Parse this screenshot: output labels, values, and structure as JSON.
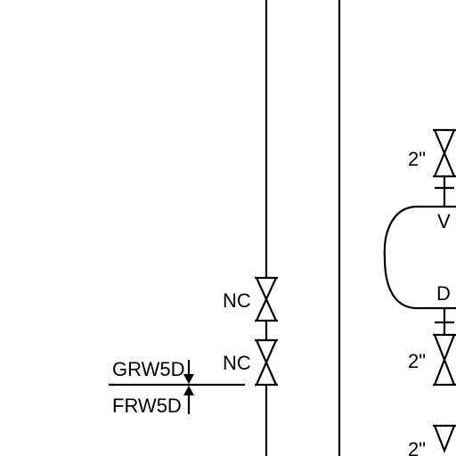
{
  "diagram": {
    "line_color": "#000000",
    "background": "#ffffff",
    "valve_labels": {
      "upper_valve": "NC",
      "lower_valve": "NC"
    },
    "boundary_labels": {
      "above": "GRW5D",
      "below": "FRW5D"
    },
    "right_valves": {
      "top": "2\"",
      "middle": "2\"",
      "bottom": "2\""
    },
    "vessel_nozzles": {
      "top": "V",
      "bottom": "D"
    }
  }
}
